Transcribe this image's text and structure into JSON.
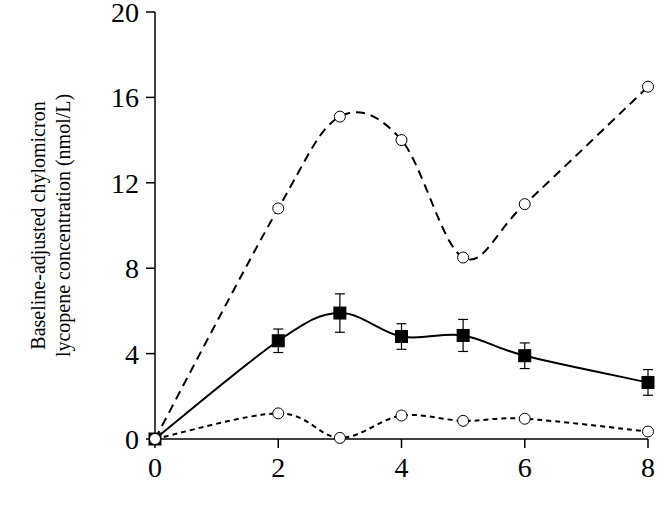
{
  "chart_data": {
    "type": "line",
    "y_label": [
      "Baseline-adjusted chylomicron",
      "lycopene concentration (nmol/L)"
    ],
    "x": [
      0,
      2,
      3,
      4,
      5,
      6,
      8
    ],
    "xlim": [
      0,
      8
    ],
    "xticks": [
      0,
      2,
      4,
      6,
      8
    ],
    "ylim": [
      0,
      20
    ],
    "yticks": [
      0,
      4,
      8,
      12,
      16,
      20
    ],
    "grid": false,
    "series": [
      {
        "color": "#000000",
        "line_style": "dashed",
        "marker": "circle-open",
        "values": [
          0,
          10.8,
          15.1,
          14.0,
          8.5,
          11.0,
          16.5
        ]
      },
      {
        "color": "#000000",
        "line_style": "solid",
        "marker": "square",
        "values": [
          0,
          4.6,
          5.9,
          4.8,
          4.85,
          3.9,
          2.65
        ],
        "errors": [
          0,
          0.55,
          0.9,
          0.6,
          0.75,
          0.6,
          0.6
        ]
      },
      {
        "color": "#000000",
        "line_style": "dotted",
        "marker": "circle-open",
        "values": [
          0,
          1.2,
          0.05,
          1.1,
          0.85,
          0.95,
          0.35
        ]
      }
    ]
  }
}
